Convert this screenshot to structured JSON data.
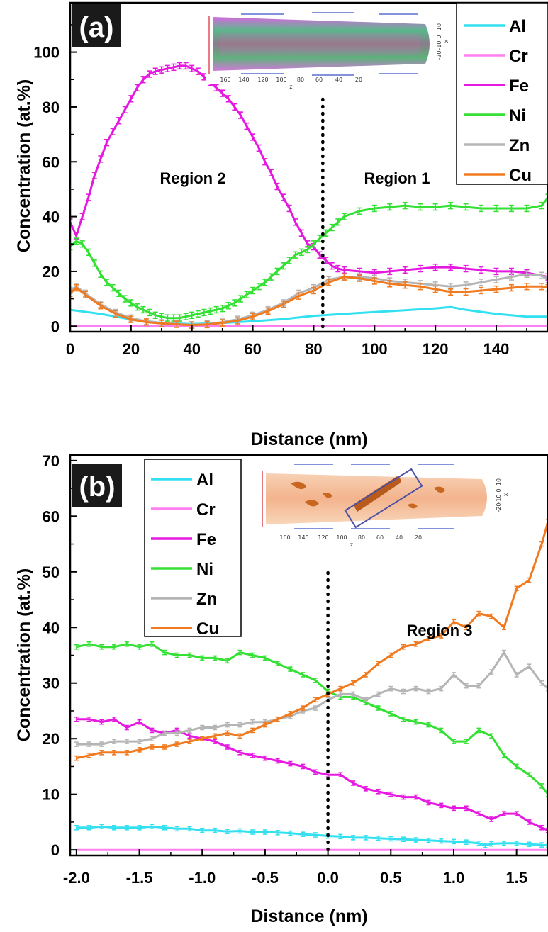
{
  "chart_data": [
    {
      "type": "line",
      "panel_label": "(a)",
      "xlabel": "Distance (nm)",
      "ylabel": "Concentration (at.%)",
      "xlim": [
        0,
        157
      ],
      "ylim": [
        -2,
        118
      ],
      "xticks": [
        0,
        20,
        40,
        60,
        80,
        100,
        120,
        140
      ],
      "yticks": [
        0,
        20,
        40,
        60,
        80,
        100
      ],
      "legend_position": "top-right",
      "annotations": [
        "Region 2",
        "Region 1"
      ],
      "divider_x": 83,
      "inset": {
        "x_ticks": [
          "160",
          "140",
          "120",
          "100",
          "80",
          "60",
          "40",
          "20"
        ],
        "y_ticks": [
          "10",
          "0",
          "-10",
          "-20"
        ],
        "x_axis_label": "z",
        "y_axis_label": "x"
      },
      "series": [
        {
          "name": "Al",
          "color": "#33e0f0",
          "errorbars": false,
          "x": [
            0,
            10,
            20,
            30,
            40,
            50,
            60,
            70,
            80,
            90,
            100,
            110,
            120,
            125,
            130,
            140,
            150,
            157
          ],
          "y": [
            6,
            4.5,
            2.5,
            1.2,
            0.8,
            1.2,
            1.8,
            2.6,
            3.8,
            4.5,
            5.2,
            5.8,
            6.5,
            7,
            6,
            4.5,
            3.5,
            3.5
          ]
        },
        {
          "name": "Cr",
          "color": "#ff7ff0",
          "errorbars": false,
          "x": [
            0,
            40,
            80,
            120,
            157
          ],
          "y": [
            0,
            0,
            0,
            0,
            0
          ]
        },
        {
          "name": "Fe",
          "color": "#e619e0",
          "errorbars": true,
          "x": [
            0,
            2,
            4,
            6,
            8,
            10,
            12,
            14,
            16,
            18,
            20,
            22,
            24,
            26,
            28,
            30,
            32,
            34,
            36,
            38,
            40,
            42,
            44,
            46,
            48,
            50,
            52,
            54,
            56,
            58,
            60,
            62,
            64,
            66,
            68,
            70,
            72,
            74,
            76,
            78,
            80,
            82,
            84,
            86,
            88,
            90,
            95,
            100,
            105,
            110,
            115,
            120,
            125,
            130,
            135,
            140,
            145,
            150,
            157
          ],
          "y": [
            38,
            33,
            40,
            47,
            55,
            61,
            67,
            71,
            75,
            79,
            83,
            87,
            90,
            92,
            93,
            93.5,
            94,
            94.5,
            95,
            95,
            94,
            93,
            91,
            89,
            87,
            85,
            83,
            80,
            77,
            73,
            69,
            65,
            60,
            56,
            51,
            47,
            43,
            38,
            34,
            30,
            29,
            26,
            24,
            22,
            21,
            20.5,
            20,
            19.5,
            20,
            20.5,
            21,
            21.5,
            21.5,
            21,
            20.5,
            20,
            20,
            19.5,
            18
          ]
        },
        {
          "name": "Ni",
          "color": "#33e033",
          "errorbars": true,
          "x": [
            0,
            2,
            4,
            6,
            8,
            10,
            12,
            14,
            16,
            18,
            20,
            22,
            24,
            26,
            28,
            30,
            32,
            34,
            36,
            38,
            40,
            42,
            44,
            46,
            48,
            50,
            52,
            54,
            56,
            58,
            60,
            62,
            64,
            66,
            68,
            70,
            72,
            74,
            76,
            78,
            80,
            82,
            84,
            86,
            88,
            90,
            95,
            100,
            105,
            110,
            115,
            120,
            125,
            130,
            135,
            140,
            145,
            150,
            155,
            157
          ],
          "y": [
            29,
            31,
            30,
            27,
            23,
            19,
            16,
            14,
            12,
            10,
            8.5,
            7,
            6,
            5,
            4,
            3.5,
            3,
            3,
            3,
            3.5,
            4,
            4.5,
            5,
            5.5,
            6,
            6.5,
            7.5,
            8.5,
            10,
            11.5,
            13,
            14.5,
            16,
            18,
            20,
            22,
            24,
            26,
            27,
            28,
            30,
            32,
            34,
            36,
            38,
            40,
            42,
            43,
            43.5,
            44,
            43.5,
            43.5,
            44,
            43.5,
            43,
            43,
            43,
            43,
            44,
            47
          ]
        },
        {
          "name": "Zn",
          "color": "#b5b5b5",
          "errorbars": true,
          "x": [
            0,
            2,
            5,
            10,
            15,
            20,
            25,
            30,
            35,
            40,
            45,
            50,
            55,
            60,
            65,
            70,
            75,
            80,
            85,
            90,
            95,
            100,
            105,
            110,
            115,
            120,
            125,
            130,
            135,
            140,
            145,
            150,
            155,
            157
          ],
          "y": [
            13,
            14.5,
            12,
            8,
            5,
            3,
            1.8,
            1.2,
            0.8,
            0.5,
            0.8,
            1.5,
            2.5,
            4,
            6,
            8.5,
            12,
            14,
            17,
            18,
            18,
            17.5,
            16.5,
            16,
            15.5,
            15,
            14.5,
            15,
            16,
            17,
            18,
            19,
            18.5,
            17
          ]
        },
        {
          "name": "Cu",
          "color": "#f07a20",
          "errorbars": true,
          "x": [
            0,
            2,
            5,
            10,
            15,
            20,
            25,
            30,
            35,
            40,
            45,
            50,
            55,
            60,
            65,
            70,
            75,
            80,
            85,
            90,
            95,
            100,
            105,
            110,
            115,
            120,
            125,
            130,
            135,
            140,
            145,
            150,
            155,
            157
          ],
          "y": [
            12,
            14,
            11.5,
            7.5,
            4.5,
            2.5,
            1.5,
            1,
            0.7,
            0.4,
            0.6,
            1.2,
            2,
            3.5,
            5.5,
            8,
            11,
            13,
            16,
            18,
            17.5,
            16.5,
            15.5,
            15,
            14.5,
            13.5,
            12.5,
            12.5,
            13,
            13.5,
            14,
            14.5,
            14.5,
            14
          ]
        }
      ]
    },
    {
      "type": "line",
      "panel_label": "(b)",
      "xlabel": "Distance (nm)",
      "ylabel": "Concentration (at.%)",
      "xlim": [
        -2.05,
        1.75
      ],
      "ylim": [
        -1,
        71
      ],
      "xticks": [
        -2.0,
        -1.5,
        -1.0,
        -0.5,
        0.0,
        0.5,
        1.0,
        1.5
      ],
      "xtick_labels": [
        "-2.0",
        "-1.5",
        "-1.0",
        "-0.5",
        "0.0",
        "0.5",
        "1.0",
        "1.5"
      ],
      "yticks": [
        0,
        10,
        20,
        30,
        40,
        50,
        60,
        70
      ],
      "legend_position": "top-left",
      "annotations": [
        "Region 3"
      ],
      "divider_x": 0,
      "inset": {
        "x_ticks": [
          "160",
          "140",
          "120",
          "100",
          "80",
          "60",
          "40",
          "20"
        ],
        "y_ticks": [
          "10",
          "0",
          "-10",
          "-20"
        ],
        "x_axis_label": "z",
        "y_axis_label": "x"
      },
      "series": [
        {
          "name": "Al",
          "color": "#33e0f0",
          "errorbars": true,
          "x": [
            -2.0,
            -1.9,
            -1.8,
            -1.7,
            -1.6,
            -1.5,
            -1.4,
            -1.3,
            -1.2,
            -1.1,
            -1.0,
            -0.9,
            -0.8,
            -0.7,
            -0.6,
            -0.5,
            -0.4,
            -0.3,
            -0.2,
            -0.1,
            0.0,
            0.1,
            0.2,
            0.3,
            0.4,
            0.5,
            0.6,
            0.7,
            0.8,
            0.9,
            1.0,
            1.1,
            1.2,
            1.25,
            1.3,
            1.4,
            1.5,
            1.6,
            1.7,
            1.75
          ],
          "y": [
            4,
            4,
            4.2,
            4,
            4,
            4,
            4.2,
            4,
            3.8,
            3.8,
            3.5,
            3.5,
            3.3,
            3.4,
            3.2,
            3.2,
            3.1,
            3,
            2.8,
            2.7,
            2.5,
            2.4,
            2.2,
            2.2,
            2.1,
            2,
            1.9,
            1.8,
            1.7,
            1.6,
            1.5,
            1.4,
            1.2,
            0.8,
            1.1,
            1.2,
            1.2,
            1,
            0.9,
            0.8
          ]
        },
        {
          "name": "Cr",
          "color": "#ff7ff0",
          "errorbars": false,
          "x": [
            -2.0,
            -1.0,
            0.0,
            1.0,
            1.75
          ],
          "y": [
            0,
            0,
            0,
            0,
            0
          ]
        },
        {
          "name": "Fe",
          "color": "#e619e0",
          "errorbars": true,
          "x": [
            -2.0,
            -1.9,
            -1.8,
            -1.7,
            -1.6,
            -1.5,
            -1.4,
            -1.3,
            -1.2,
            -1.1,
            -1.0,
            -0.9,
            -0.8,
            -0.7,
            -0.6,
            -0.5,
            -0.4,
            -0.3,
            -0.2,
            -0.1,
            0.0,
            0.1,
            0.2,
            0.3,
            0.4,
            0.5,
            0.6,
            0.7,
            0.8,
            0.9,
            1.0,
            1.1,
            1.2,
            1.3,
            1.4,
            1.5,
            1.6,
            1.7,
            1.75
          ],
          "y": [
            23.5,
            23.5,
            23,
            23.5,
            22,
            23,
            21.5,
            21,
            21.5,
            20.5,
            20,
            19.5,
            18.5,
            17.5,
            17,
            16.5,
            16,
            15.5,
            15,
            14,
            13.5,
            13.5,
            12,
            11,
            10.5,
            10,
            9.5,
            9.5,
            8.5,
            8,
            7.5,
            7.5,
            6.5,
            5.5,
            6.5,
            6.5,
            5,
            4,
            3.5
          ]
        },
        {
          "name": "Ni",
          "color": "#33e033",
          "errorbars": true,
          "x": [
            -2.0,
            -1.9,
            -1.8,
            -1.7,
            -1.6,
            -1.5,
            -1.4,
            -1.3,
            -1.2,
            -1.1,
            -1.0,
            -0.9,
            -0.8,
            -0.7,
            -0.6,
            -0.5,
            -0.4,
            -0.3,
            -0.2,
            -0.1,
            0.0,
            0.1,
            0.2,
            0.3,
            0.4,
            0.5,
            0.6,
            0.7,
            0.8,
            0.9,
            1.0,
            1.1,
            1.2,
            1.3,
            1.4,
            1.5,
            1.6,
            1.7,
            1.75
          ],
          "y": [
            36.5,
            37,
            36.5,
            36.5,
            37,
            36.5,
            37,
            35.5,
            35,
            35,
            34.5,
            34.5,
            34,
            35.5,
            35,
            34.5,
            33.5,
            32.5,
            31.5,
            30.5,
            28.5,
            27.5,
            27.5,
            26.5,
            25.5,
            24.5,
            23.5,
            23,
            22.5,
            21.5,
            19.5,
            19.5,
            21.5,
            20.5,
            17,
            15,
            13.5,
            11.5,
            10
          ]
        },
        {
          "name": "Zn",
          "color": "#b5b5b5",
          "errorbars": true,
          "x": [
            -2.0,
            -1.9,
            -1.8,
            -1.7,
            -1.6,
            -1.5,
            -1.4,
            -1.3,
            -1.2,
            -1.1,
            -1.0,
            -0.9,
            -0.8,
            -0.7,
            -0.6,
            -0.5,
            -0.4,
            -0.3,
            -0.2,
            -0.1,
            0.0,
            0.1,
            0.2,
            0.3,
            0.4,
            0.5,
            0.6,
            0.7,
            0.8,
            0.9,
            1.0,
            1.1,
            1.2,
            1.3,
            1.4,
            1.5,
            1.6,
            1.7,
            1.75
          ],
          "y": [
            19,
            19,
            19,
            19.5,
            19.5,
            19.5,
            20,
            21,
            21,
            21.5,
            22,
            22,
            22.5,
            22.5,
            23,
            23,
            23.5,
            24,
            25,
            25.5,
            27,
            28,
            28,
            27,
            28,
            29,
            28.5,
            29,
            28.5,
            29,
            31.5,
            29.5,
            29.5,
            32,
            35.5,
            31.5,
            33,
            30,
            29
          ]
        },
        {
          "name": "Cu",
          "color": "#f07a20",
          "errorbars": true,
          "x": [
            -2.0,
            -1.9,
            -1.8,
            -1.7,
            -1.6,
            -1.5,
            -1.4,
            -1.3,
            -1.2,
            -1.1,
            -1.0,
            -0.9,
            -0.8,
            -0.7,
            -0.6,
            -0.5,
            -0.4,
            -0.3,
            -0.2,
            -0.1,
            0.0,
            0.1,
            0.2,
            0.3,
            0.4,
            0.5,
            0.6,
            0.7,
            0.8,
            0.9,
            1.0,
            1.1,
            1.2,
            1.3,
            1.4,
            1.5,
            1.6,
            1.7,
            1.75
          ],
          "y": [
            16.5,
            17,
            17.5,
            17.5,
            17.5,
            18,
            18.5,
            18.5,
            19,
            19.5,
            20,
            20.5,
            21,
            20.5,
            21.5,
            22.5,
            23.5,
            24.5,
            25.5,
            27,
            28,
            29,
            30,
            31.5,
            33.5,
            35,
            36.5,
            37,
            38,
            38.5,
            41,
            40,
            42.5,
            42,
            40,
            47,
            48.5,
            55,
            59
          ]
        }
      ]
    }
  ]
}
